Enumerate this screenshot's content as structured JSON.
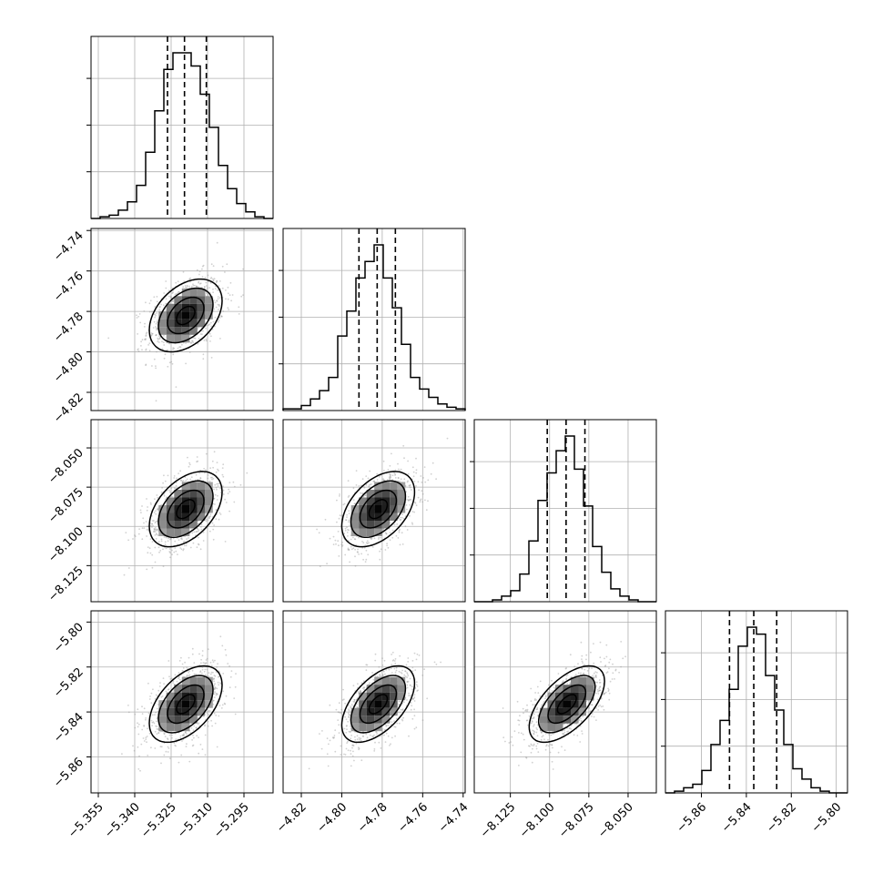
{
  "chart_data": {
    "type": "corner",
    "grid": true,
    "colors": {
      "line": "#000000",
      "grid": "#b0b0b0",
      "scatter": "#9a9a9a"
    },
    "parameters": [
      {
        "index": 0,
        "range": [
          -5.358,
          -5.283
        ],
        "ticks": [
          -5.355,
          -5.34,
          -5.325,
          -5.31,
          -5.295
        ],
        "tick_labels": [
          "−5.355",
          "−5.340",
          "−5.325",
          "−5.310",
          "−5.295"
        ],
        "mean": -5.319,
        "std": 0.0075,
        "quantiles": [
          -5.3265,
          -5.3195,
          -5.3105
        ],
        "hist_counts": [
          0,
          1,
          2,
          5,
          10,
          20,
          40,
          65,
          90,
          100,
          100,
          92,
          75,
          55,
          32,
          18,
          9,
          4,
          1,
          0
        ]
      },
      {
        "index": 1,
        "range": [
          -4.829,
          -4.739
        ],
        "ticks": [
          -4.82,
          -4.8,
          -4.78,
          -4.76,
          -4.74
        ],
        "tick_labels": [
          "−4.82",
          "−4.80",
          "−4.78",
          "−4.76",
          "−4.74"
        ],
        "mean": -4.782,
        "std": 0.009,
        "quantiles": [
          -4.7915,
          -4.7825,
          -4.7735
        ],
        "hist_counts": [
          1,
          1,
          3,
          7,
          12,
          20,
          45,
          60,
          80,
          90,
          100,
          80,
          62,
          40,
          20,
          13,
          8,
          4,
          2,
          1
        ]
      },
      {
        "index": 2,
        "range": [
          -8.148,
          -8.032
        ],
        "ticks": [
          -8.125,
          -8.1,
          -8.075,
          -8.05
        ],
        "tick_labels": [
          "−8.125",
          "−8.100",
          "−8.075",
          "−8.050"
        ],
        "mean": -8.089,
        "std": 0.012,
        "quantiles": [
          -8.1015,
          -8.0895,
          -8.0775
        ],
        "hist_counts": [
          0,
          0,
          1,
          3,
          6,
          15,
          33,
          55,
          70,
          82,
          90,
          72,
          52,
          30,
          16,
          7,
          3,
          1,
          0,
          0
        ]
      },
      {
        "index": 3,
        "range": [
          -5.876,
          -5.795
        ],
        "ticks": [
          -5.86,
          -5.84,
          -5.82,
          -5.8
        ],
        "tick_labels": [
          "−5.86",
          "−5.84",
          "−5.82",
          "−5.80"
        ],
        "mean": -5.8365,
        "std": 0.0085,
        "quantiles": [
          -5.8475,
          -5.8367,
          -5.8265
        ],
        "hist_counts": [
          0,
          1,
          3,
          5,
          13,
          28,
          42,
          60,
          85,
          96,
          92,
          68,
          48,
          28,
          14,
          8,
          3,
          1,
          0,
          0
        ]
      }
    ],
    "correlations": {
      "1-0": 0.4,
      "2-0": 0.45,
      "2-1": 0.45,
      "3-0": 0.5,
      "3-1": 0.55,
      "3-2": 0.6
    }
  }
}
